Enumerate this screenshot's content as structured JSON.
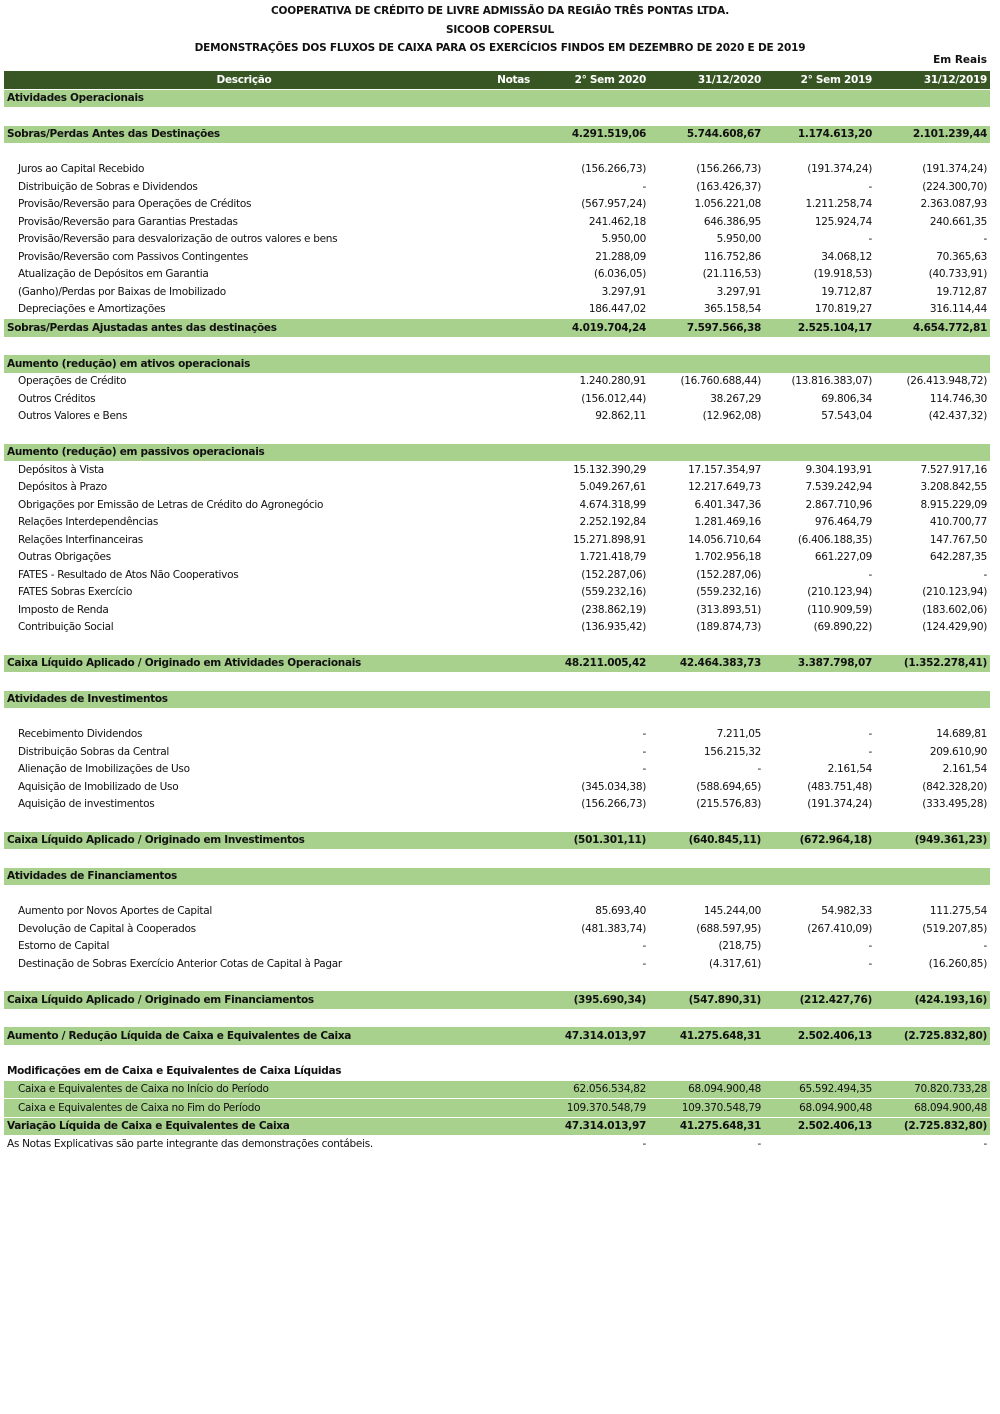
{
  "header": {
    "title_line1": "COOPERATIVA DE CRÉDITO DE LIVRE ADMISSÃO DA REGIÃO TRÊS PONTAS LTDA.",
    "title_line2": "SICOOB COPERSUL",
    "title_line3": "DEMONSTRAÇÕES DOS FLUXOS DE CAIXA PARA OS EXERCÍCIOS FINDOS EM DEZEMBRO DE 2020 E DE 2019",
    "unit": "Em Reais"
  },
  "columns": [
    "Descrição",
    "Notas",
    "2° Sem 2020",
    "31/12/2020",
    "2° Sem 2019",
    "31/12/2019"
  ],
  "colors": {
    "header_bg": "#375623",
    "highlight_bg": "#a9d18e"
  },
  "rows": [
    {
      "type": "section",
      "label": "Atividades Operacionais"
    },
    {
      "type": "blank"
    },
    {
      "type": "total",
      "label": "Sobras/Perdas Antes das Destinações",
      "values": [
        "4.291.519,06",
        "5.744.608,67",
        "1.174.613,20",
        "2.101.239,44"
      ]
    },
    {
      "type": "blank"
    },
    {
      "type": "item",
      "label": "Juros ao Capital Recebido",
      "values": [
        "(156.266,73)",
        "(156.266,73)",
        "(191.374,24)",
        "(191.374,24)"
      ]
    },
    {
      "type": "item",
      "label": "Distribuição de Sobras e Dividendos",
      "values": [
        "-",
        "(163.426,37)",
        "-",
        "(224.300,70)"
      ]
    },
    {
      "type": "item",
      "label": "Provisão/Reversão para Operações de Créditos",
      "values": [
        "(567.957,24)",
        "1.056.221,08",
        "1.211.258,74",
        "2.363.087,93"
      ]
    },
    {
      "type": "item",
      "label": "Provisão/Reversão para Garantias Prestadas",
      "values": [
        "241.462,18",
        "646.386,95",
        "125.924,74",
        "240.661,35"
      ]
    },
    {
      "type": "item",
      "label": "Provisão/Reversão para desvalorização de outros valores e bens",
      "values": [
        "5.950,00",
        "5.950,00",
        "-",
        "-"
      ]
    },
    {
      "type": "item",
      "label": "Provisão/Reversão com Passivos Contingentes",
      "values": [
        "21.288,09",
        "116.752,86",
        "34.068,12",
        "70.365,63"
      ]
    },
    {
      "type": "item",
      "label": "Atualização de Depósitos em Garantia",
      "values": [
        "(6.036,05)",
        "(21.116,53)",
        "(19.918,53)",
        "(40.733,91)"
      ]
    },
    {
      "type": "item",
      "label": "(Ganho)/Perdas por Baixas de Imobilizado",
      "values": [
        "3.297,91",
        "3.297,91",
        "19.712,87",
        "19.712,87"
      ]
    },
    {
      "type": "item",
      "label": "Depreciações e Amortizações",
      "values": [
        "186.447,02",
        "365.158,54",
        "170.819,27",
        "316.114,44"
      ]
    },
    {
      "type": "total",
      "label": "Sobras/Perdas Ajustadas antes das destinações",
      "values": [
        "4.019.704,24",
        "7.597.566,38",
        "2.525.104,17",
        "4.654.772,81"
      ]
    },
    {
      "type": "blank"
    },
    {
      "type": "section",
      "label": "Aumento (redução) em ativos operacionais"
    },
    {
      "type": "item",
      "label": "Operações de Crédito",
      "values": [
        "1.240.280,91",
        "(16.760.688,44)",
        "(13.816.383,07)",
        "(26.413.948,72)"
      ]
    },
    {
      "type": "item",
      "label": "Outros Créditos",
      "values": [
        "(156.012,44)",
        "38.267,29",
        "69.806,34",
        "114.746,30"
      ]
    },
    {
      "type": "item",
      "label": "Outros Valores e Bens",
      "values": [
        "92.862,11",
        "(12.962,08)",
        "57.543,04",
        "(42.437,32)"
      ]
    },
    {
      "type": "blank"
    },
    {
      "type": "section",
      "label": "Aumento (redução) em passivos operacionais"
    },
    {
      "type": "item",
      "label": "Depósitos à Vista",
      "values": [
        "15.132.390,29",
        "17.157.354,97",
        "9.304.193,91",
        "7.527.917,16"
      ]
    },
    {
      "type": "item",
      "label": "Depósitos à Prazo",
      "values": [
        "5.049.267,61",
        "12.217.649,73",
        "7.539.242,94",
        "3.208.842,55"
      ]
    },
    {
      "type": "item",
      "label": "Obrigações por Emissão de Letras de Crédito do Agronegócio",
      "values": [
        "4.674.318,99",
        "6.401.347,36",
        "2.867.710,96",
        "8.915.229,09"
      ]
    },
    {
      "type": "item",
      "label": "Relações Interdependências",
      "values": [
        "2.252.192,84",
        "1.281.469,16",
        "976.464,79",
        "410.700,77"
      ]
    },
    {
      "type": "item",
      "label": "Relações Interfinanceiras",
      "values": [
        "15.271.898,91",
        "14.056.710,64",
        "(6.406.188,35)",
        "147.767,50"
      ]
    },
    {
      "type": "item",
      "label": "Outras Obrigações",
      "values": [
        "1.721.418,79",
        "1.702.956,18",
        "661.227,09",
        "642.287,35"
      ]
    },
    {
      "type": "item",
      "label": "FATES - Resultado de Atos Não Cooperativos",
      "values": [
        "(152.287,06)",
        "(152.287,06)",
        "-",
        "-"
      ]
    },
    {
      "type": "item",
      "label": "FATES Sobras Exercício",
      "values": [
        "(559.232,16)",
        "(559.232,16)",
        "(210.123,94)",
        "(210.123,94)"
      ]
    },
    {
      "type": "item",
      "label": "Imposto de Renda",
      "values": [
        "(238.862,19)",
        "(313.893,51)",
        "(110.909,59)",
        "(183.602,06)"
      ]
    },
    {
      "type": "item",
      "label": "Contribuição Social",
      "values": [
        "(136.935,42)",
        "(189.874,73)",
        "(69.890,22)",
        "(124.429,90)"
      ]
    },
    {
      "type": "blank"
    },
    {
      "type": "total",
      "label": "Caixa Líquido Aplicado / Originado em Atividades Operacionais",
      "values": [
        "48.211.005,42",
        "42.464.383,73",
        "3.387.798,07",
        "(1.352.278,41)"
      ]
    },
    {
      "type": "blank"
    },
    {
      "type": "section",
      "label": "Atividades de Investimentos"
    },
    {
      "type": "blank"
    },
    {
      "type": "item",
      "label": "Recebimento Dividendos",
      "values": [
        "-",
        "7.211,05",
        "-",
        "14.689,81"
      ]
    },
    {
      "type": "item",
      "label": "Distribuição Sobras da Central",
      "values": [
        "-",
        "156.215,32",
        "-",
        "209.610,90"
      ]
    },
    {
      "type": "item",
      "label": "Alienação de Imobilizações de Uso",
      "values": [
        "-",
        "-",
        "2.161,54",
        "2.161,54"
      ]
    },
    {
      "type": "item",
      "label": "Aquisição de Imobilizado de Uso",
      "values": [
        "(345.034,38)",
        "(588.694,65)",
        "(483.751,48)",
        "(842.328,20)"
      ]
    },
    {
      "type": "item",
      "label": "Aquisição de investimentos",
      "values": [
        "(156.266,73)",
        "(215.576,83)",
        "(191.374,24)",
        "(333.495,28)"
      ]
    },
    {
      "type": "blank"
    },
    {
      "type": "total",
      "label": "Caixa Líquido Aplicado / Originado em Investimentos",
      "values": [
        "(501.301,11)",
        "(640.845,11)",
        "(672.964,18)",
        "(949.361,23)"
      ]
    },
    {
      "type": "blank"
    },
    {
      "type": "section",
      "label": "Atividades de Financiamentos"
    },
    {
      "type": "blank"
    },
    {
      "type": "item",
      "label": "Aumento por Novos Aportes de Capital",
      "values": [
        "85.693,40",
        "145.244,00",
        "54.982,33",
        "111.275,54"
      ]
    },
    {
      "type": "item",
      "label": "Devolução de Capital à Cooperados",
      "values": [
        "(481.383,74)",
        "(688.597,95)",
        "(267.410,09)",
        "(519.207,85)"
      ]
    },
    {
      "type": "item",
      "label": "Estorno de Capital",
      "values": [
        "-",
        "(218,75)",
        "-",
        "-"
      ]
    },
    {
      "type": "item",
      "label": "Destinação de Sobras Exercício Anterior Cotas de Capital à Pagar",
      "values": [
        "-",
        "(4.317,61)",
        "-",
        "(16.260,85)"
      ]
    },
    {
      "type": "blank"
    },
    {
      "type": "total",
      "label": "Caixa Líquido Aplicado / Originado em Financiamentos",
      "values": [
        "(395.690,34)",
        "(547.890,31)",
        "(212.427,76)",
        "(424.193,16)"
      ]
    },
    {
      "type": "blank"
    },
    {
      "type": "total",
      "label": "Aumento / Redução Líquida de Caixa e Equivalentes de Caixa",
      "values": [
        "47.314.013,97",
        "41.275.648,31",
        "2.502.406,13",
        "(2.725.832,80)"
      ]
    },
    {
      "type": "blank"
    },
    {
      "type": "bold",
      "label": "Modificações em de Caixa e Equivalentes de Caixa Líquidas"
    },
    {
      "type": "green-item",
      "label": "Caixa e Equivalentes de Caixa no Início do Período",
      "values": [
        "62.056.534,82",
        "68.094.900,48",
        "65.592.494,35",
        "70.820.733,28"
      ]
    },
    {
      "type": "green-item",
      "label": "Caixa e Equivalentes de Caixa no Fim do Período",
      "values": [
        "109.370.548,79",
        "109.370.548,79",
        "68.094.900,48",
        "68.094.900,48"
      ]
    },
    {
      "type": "total",
      "label": "Variação Líquida de Caixa e Equivalentes de Caixa",
      "values": [
        "47.314.013,97",
        "41.275.648,31",
        "2.502.406,13",
        "(2.725.832,80)"
      ]
    },
    {
      "type": "note",
      "label": "As Notas Explicativas são parte integrante das demonstrações contábeis.",
      "values": [
        "-",
        "-",
        "",
        "-"
      ]
    }
  ]
}
